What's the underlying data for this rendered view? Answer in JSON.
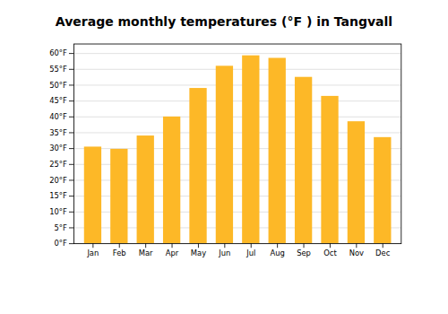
{
  "chart_data": {
    "type": "bar",
    "title": "Average monthly temperatures (°F ) in Tangvall",
    "categories": [
      "Jan",
      "Feb",
      "Mar",
      "Apr",
      "May",
      "Jun",
      "Jul",
      "Aug",
      "Sep",
      "Oct",
      "Nov",
      "Dec"
    ],
    "values": [
      30.5,
      29.8,
      34.0,
      40.0,
      49.0,
      56.0,
      59.3,
      58.5,
      52.5,
      46.5,
      38.5,
      33.5
    ],
    "color": "#FDB827",
    "ylim": [
      0,
      63
    ],
    "yticks": [
      {
        "value": 0,
        "label": "0°F"
      },
      {
        "value": 5,
        "label": "5°F"
      },
      {
        "value": 10,
        "label": "10°F"
      },
      {
        "value": 15,
        "label": "15°F"
      },
      {
        "value": 20,
        "label": "20°F"
      },
      {
        "value": 25,
        "label": "25°F"
      },
      {
        "value": 30,
        "label": "30°F"
      },
      {
        "value": 35,
        "label": "35°F"
      },
      {
        "value": 40,
        "label": "40°F"
      },
      {
        "value": 45,
        "label": "45°F"
      },
      {
        "value": 50,
        "label": "50°F"
      },
      {
        "value": 55,
        "label": "55°F"
      },
      {
        "value": 60,
        "label": "60°F"
      }
    ],
    "grid": true
  }
}
